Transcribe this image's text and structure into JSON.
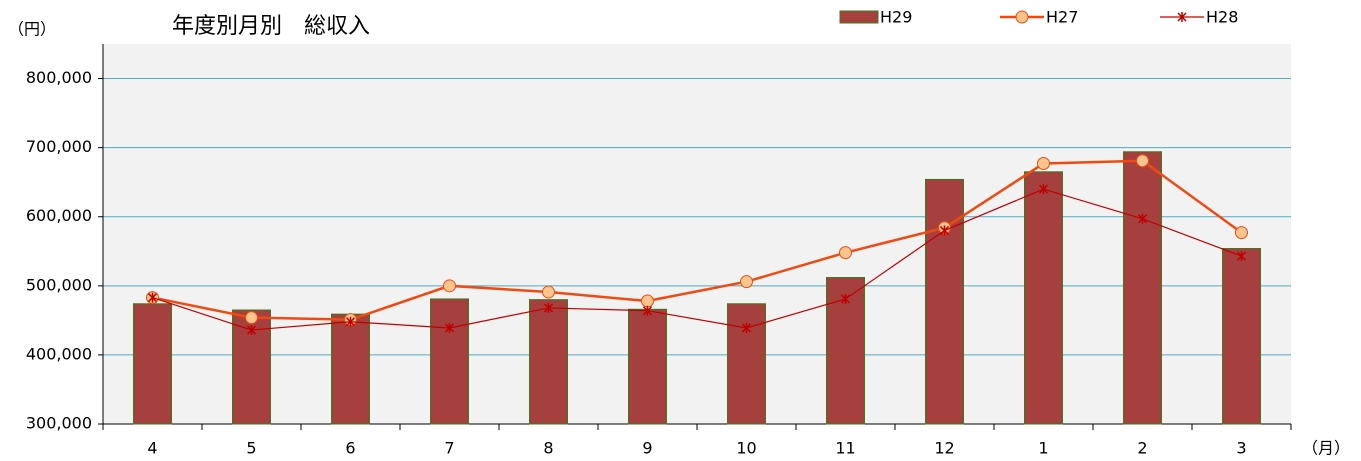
{
  "chart_data": {
    "type": "bar_line",
    "title": "年度別月別　総収入",
    "y_unit": "（円）",
    "x_unit": "（月）",
    "categories": [
      "4",
      "5",
      "6",
      "7",
      "8",
      "9",
      "10",
      "11",
      "12",
      "1",
      "2",
      "3"
    ],
    "series": [
      {
        "name": "H29",
        "type": "bar",
        "color": "#a5403e",
        "values": [
          474000,
          465000,
          459000,
          481000,
          480000,
          466000,
          474000,
          512000,
          654000,
          665000,
          694000,
          554000
        ]
      },
      {
        "name": "H27",
        "type": "line",
        "color": "#f04a10",
        "values": [
          483000,
          454000,
          451000,
          500000,
          491000,
          478000,
          506000,
          548000,
          584000,
          677000,
          681000,
          577000
        ]
      },
      {
        "name": "H28",
        "type": "line",
        "color": "#c00000",
        "values": [
          483000,
          436000,
          448000,
          439000,
          468000,
          464000,
          439000,
          481000,
          580000,
          640000,
          597000,
          543000
        ]
      }
    ],
    "ylim": [
      300000,
      850000
    ],
    "yticks": [
      {
        "value": 300000,
        "label": "300,000"
      },
      {
        "value": 400000,
        "label": "400,000"
      },
      {
        "value": 500000,
        "label": "500,000"
      },
      {
        "value": 600000,
        "label": "600,000"
      },
      {
        "value": 700000,
        "label": "700,000"
      },
      {
        "value": 800000,
        "label": "800,000"
      }
    ],
    "grid": true
  }
}
